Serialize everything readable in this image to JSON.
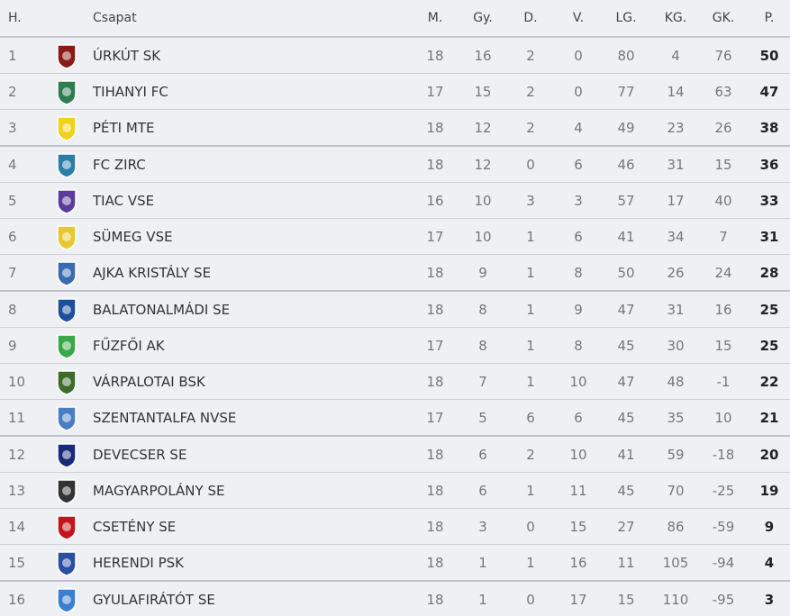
{
  "headers": {
    "pos": "H.",
    "team": "Csapat",
    "played": "M.",
    "won": "Gy.",
    "drawn": "D.",
    "lost": "V.",
    "gf": "LG.",
    "ga": "KG.",
    "gd": "GK.",
    "pts": "P."
  },
  "rows": [
    {
      "pos": "1",
      "team": "ÚRKÚT SK",
      "played": "18",
      "won": "16",
      "drawn": "2",
      "lost": "0",
      "gf": "80",
      "ga": "4",
      "gd": "76",
      "pts": "50",
      "logo_color": "#8b1a1a"
    },
    {
      "pos": "2",
      "team": "TIHANYI FC",
      "played": "17",
      "won": "15",
      "drawn": "2",
      "lost": "0",
      "gf": "77",
      "ga": "14",
      "gd": "63",
      "pts": "47",
      "logo_color": "#2e7d4f"
    },
    {
      "pos": "3",
      "team": "PÉTI MTE",
      "played": "18",
      "won": "12",
      "drawn": "2",
      "lost": "4",
      "gf": "49",
      "ga": "23",
      "gd": "26",
      "pts": "38",
      "logo_color": "#f1d21a"
    },
    {
      "pos": "4",
      "team": "FC ZIRC",
      "played": "18",
      "won": "12",
      "drawn": "0",
      "lost": "6",
      "gf": "46",
      "ga": "31",
      "gd": "15",
      "pts": "36",
      "logo_color": "#2a7fa8"
    },
    {
      "pos": "5",
      "team": "TIAC VSE",
      "played": "16",
      "won": "10",
      "drawn": "3",
      "lost": "3",
      "gf": "57",
      "ga": "17",
      "gd": "40",
      "pts": "33",
      "logo_color": "#5a3c9c"
    },
    {
      "pos": "6",
      "team": "SÜMEG VSE",
      "played": "17",
      "won": "10",
      "drawn": "1",
      "lost": "6",
      "gf": "41",
      "ga": "34",
      "gd": "7",
      "pts": "31",
      "logo_color": "#e8c830"
    },
    {
      "pos": "7",
      "team": "AJKA KRISTÁLY SE",
      "played": "18",
      "won": "9",
      "drawn": "1",
      "lost": "8",
      "gf": "50",
      "ga": "26",
      "gd": "24",
      "pts": "28",
      "logo_color": "#3a6ab0"
    },
    {
      "pos": "8",
      "team": "BALATONALMÁDI SE",
      "played": "18",
      "won": "8",
      "drawn": "1",
      "lost": "9",
      "gf": "47",
      "ga": "31",
      "gd": "16",
      "pts": "25",
      "logo_color": "#1c4f9c"
    },
    {
      "pos": "9",
      "team": "FŰZFŐI AK",
      "played": "17",
      "won": "8",
      "drawn": "1",
      "lost": "8",
      "gf": "45",
      "ga": "30",
      "gd": "15",
      "pts": "25",
      "logo_color": "#3aa84a"
    },
    {
      "pos": "10",
      "team": "VÁRPALOTAI BSK",
      "played": "18",
      "won": "7",
      "drawn": "1",
      "lost": "10",
      "gf": "47",
      "ga": "48",
      "gd": "-1",
      "pts": "22",
      "logo_color": "#3d6b2a"
    },
    {
      "pos": "11",
      "team": "SZENTANTALFA NVSE",
      "played": "17",
      "won": "5",
      "drawn": "6",
      "lost": "6",
      "gf": "45",
      "ga": "35",
      "gd": "10",
      "pts": "21",
      "logo_color": "#4a7ec4"
    },
    {
      "pos": "12",
      "team": "DEVECSER SE",
      "played": "18",
      "won": "6",
      "drawn": "2",
      "lost": "10",
      "gf": "41",
      "ga": "59",
      "gd": "-18",
      "pts": "20",
      "logo_color": "#1a2a7a"
    },
    {
      "pos": "13",
      "team": "MAGYARPOLÁNY SE",
      "played": "18",
      "won": "6",
      "drawn": "1",
      "lost": "11",
      "gf": "45",
      "ga": "70",
      "gd": "-25",
      "pts": "19",
      "logo_color": "#333333"
    },
    {
      "pos": "14",
      "team": "CSETÉNY SE",
      "played": "18",
      "won": "3",
      "drawn": "0",
      "lost": "15",
      "gf": "27",
      "ga": "86",
      "gd": "-59",
      "pts": "9",
      "logo_color": "#c0161c"
    },
    {
      "pos": "15",
      "team": "HERENDI PSK",
      "played": "18",
      "won": "1",
      "drawn": "1",
      "lost": "16",
      "gf": "11",
      "ga": "105",
      "gd": "-94",
      "pts": "4",
      "logo_color": "#2a4fa0"
    },
    {
      "pos": "16",
      "team": "GYULAFIRÁTÓT SE",
      "played": "18",
      "won": "1",
      "drawn": "0",
      "lost": "17",
      "gf": "15",
      "ga": "110",
      "gd": "-95",
      "pts": "3",
      "logo_color": "#3a7fd0"
    }
  ]
}
